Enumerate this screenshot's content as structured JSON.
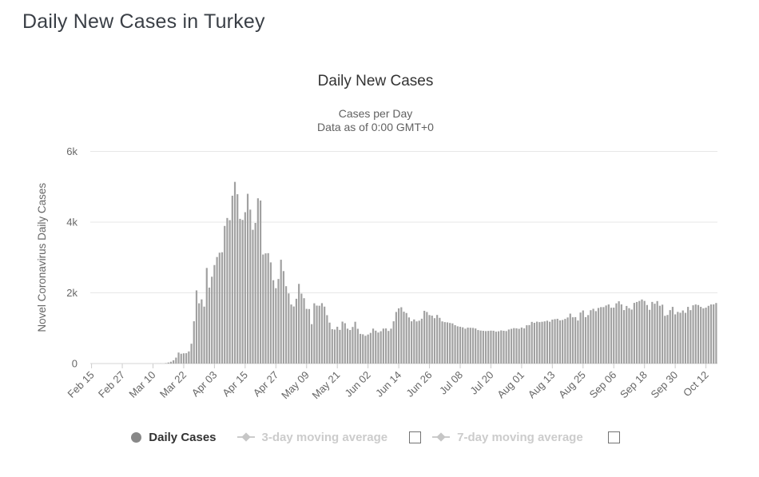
{
  "page": {
    "title": "Daily New Cases in Turkey"
  },
  "chart": {
    "title": "Daily New Cases",
    "subtitle_line1": "Cases per Day",
    "subtitle_line2": "Data as of 0:00 GMT+0"
  },
  "legend": {
    "items": [
      {
        "label": "Daily Cases",
        "marker": "circle",
        "enabled": true,
        "checkbox": false
      },
      {
        "label": "3-day moving average",
        "marker": "diamond-line",
        "enabled": false,
        "checkbox": true
      },
      {
        "label": "7-day moving average",
        "marker": "diamond-line",
        "enabled": false,
        "checkbox": true
      }
    ]
  },
  "colors": {
    "page_title": "#3a3f46",
    "chart_title": "#333333",
    "subtitle": "#616161",
    "bar": "#a1a1a1",
    "gridline": "#e7e7e7",
    "axis_line": "#d4d4d4",
    "tick_label": "#666666",
    "legend_enabled_text": "#333333",
    "legend_disabled_text": "#cccccc",
    "legend_circle": "#888888"
  },
  "chart_data": {
    "type": "bar",
    "title": "Daily New Cases",
    "subtitle": [
      "Cases per Day",
      "Data as of 0:00 GMT+0"
    ],
    "xlabel": "",
    "ylabel": "Novel Coronavirus Daily Cases",
    "ylim": [
      0,
      6000
    ],
    "grid": true,
    "legend_position": "bottom",
    "ytick_values": [
      0,
      2000,
      4000,
      6000
    ],
    "ytick_labels": [
      "0",
      "2k",
      "4k",
      "6k"
    ],
    "xtick_every": 12,
    "xtick_labels": [
      "Feb 15",
      "Feb 27",
      "Mar 10",
      "Mar 22",
      "Apr 03",
      "Apr 15",
      "Apr 27",
      "May 09",
      "May 21",
      "Jun 02",
      "Jun 14",
      "Jun 26",
      "Jul 08",
      "Jul 20",
      "Aug 01",
      "Aug 13",
      "Aug 25",
      "Sep 06",
      "Sep 18",
      "Sep 30",
      "Oct 12"
    ],
    "x_start": "Feb 15",
    "x_end": "Oct 16",
    "series": [
      {
        "name": "Daily Cases",
        "values": [
          0,
          0,
          0,
          0,
          0,
          0,
          0,
          0,
          0,
          0,
          0,
          0,
          0,
          0,
          0,
          0,
          0,
          0,
          0,
          0,
          0,
          0,
          0,
          0,
          0,
          1,
          1,
          3,
          1,
          12,
          29,
          51,
          93,
          168,
          311,
          277,
          289,
          293,
          343,
          561,
          1196,
          2069,
          1704,
          1815,
          1610,
          2704,
          2148,
          2456,
          2786,
          3013,
          3135,
          3148,
          3892,
          4117,
          4056,
          4747,
          5138,
          4789,
          4093,
          4062,
          4281,
          4801,
          4353,
          3783,
          3977,
          4674,
          4611,
          3083,
          3116,
          3122,
          2861,
          2357,
          2131,
          2392,
          2936,
          2615,
          2188,
          1983,
          1670,
          1614,
          1832,
          2253,
          1977,
          1848,
          1546,
          1542,
          1114,
          1704,
          1639,
          1635,
          1708,
          1610,
          1368,
          1158,
          972,
          961,
          1041,
          952,
          1186,
          1141,
          987,
          948,
          1035,
          1182,
          983,
          839,
          827,
          786,
          821,
          867,
          988,
          930,
          878,
          914,
          989,
          993,
          922,
          987,
          1195,
          1459,
          1562,
          1592,
          1467,
          1429,
          1304,
          1195,
          1248,
          1192,
          1212,
          1268,
          1492,
          1458,
          1372,
          1356,
          1283,
          1374,
          1293,
          1192,
          1172,
          1165,
          1148,
          1136,
          1086,
          1053,
          1041,
          1024,
          985,
          1016,
          1012,
          1008,
          992,
          947,
          933,
          926,
          918,
          924,
          931,
          928,
          902,
          913,
          937,
          927,
          919,
          963,
          982,
          1002,
          996,
          982,
          1018,
          995,
          1083,
          1088,
          1178,
          1153,
          1185,
          1172,
          1182,
          1193,
          1212,
          1183,
          1243,
          1256,
          1266,
          1221,
          1233,
          1263,
          1303,
          1412,
          1309,
          1313,
          1217,
          1443,
          1502,
          1313,
          1371,
          1509,
          1549,
          1482,
          1572,
          1596,
          1596,
          1642,
          1671,
          1578,
          1582,
          1703,
          1761,
          1673,
          1512,
          1629,
          1566,
          1527,
          1716,
          1742,
          1771,
          1812,
          1771,
          1656,
          1519,
          1743,
          1692,
          1767,
          1635,
          1665,
          1350,
          1374,
          1511,
          1603,
          1391,
          1461,
          1437,
          1502,
          1434,
          1603,
          1511,
          1648,
          1671,
          1655,
          1603,
          1562,
          1581,
          1632,
          1671,
          1673,
          1712
        ]
      }
    ]
  }
}
